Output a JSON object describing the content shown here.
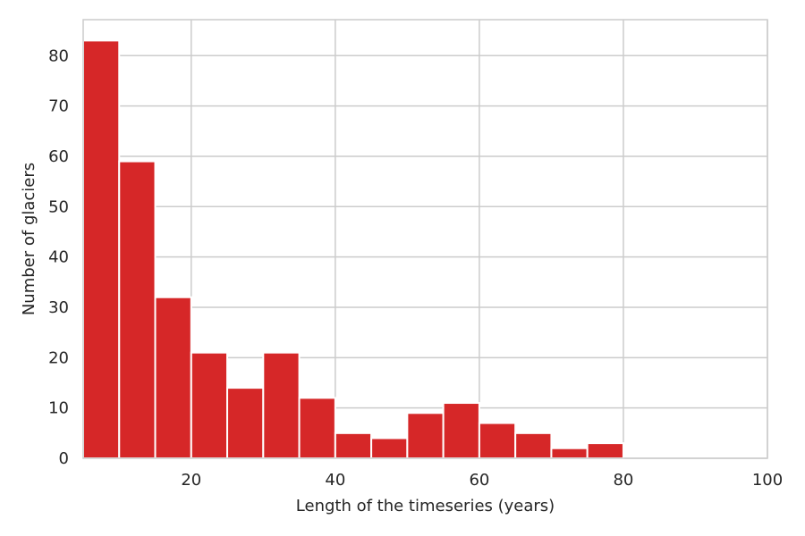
{
  "chart_data": {
    "type": "bar",
    "subtype": "histogram",
    "bin_edges": [
      5,
      10,
      15,
      20,
      25,
      30,
      35,
      40,
      45,
      50,
      55,
      60,
      65,
      70,
      75,
      80,
      85,
      90,
      95,
      100
    ],
    "values": [
      83,
      59,
      32,
      21,
      14,
      21,
      12,
      5,
      4,
      9,
      11,
      7,
      5,
      2,
      3,
      0,
      0,
      0,
      0
    ],
    "xlabel": "Length of the timeseries (years)",
    "ylabel": "Number of glaciers",
    "xlim": [
      5,
      100
    ],
    "ylim": [
      0,
      87.15
    ],
    "xticks": [
      20,
      40,
      60,
      80,
      100
    ],
    "yticks": [
      0,
      10,
      20,
      30,
      40,
      50,
      60,
      70,
      80
    ],
    "grid": true,
    "bar_color": "#d62728",
    "grid_color": "#cccccc"
  }
}
